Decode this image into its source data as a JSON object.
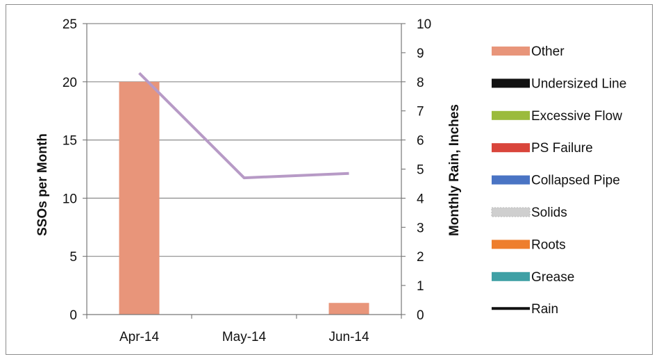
{
  "chart_data": {
    "type": "bar",
    "categories": [
      "Apr-14",
      "May-14",
      "Jun-14"
    ],
    "series": [
      {
        "name": "Other",
        "values": [
          20,
          0,
          1
        ],
        "color": "#e8957a",
        "axis": "left"
      },
      {
        "name": "Undersized Line",
        "values": [
          0,
          0,
          0
        ],
        "color": "#111111",
        "axis": "left"
      },
      {
        "name": "Excessive Flow",
        "values": [
          0,
          0,
          0
        ],
        "color": "#9bbb3c",
        "axis": "left"
      },
      {
        "name": "PS Failure",
        "values": [
          0,
          0,
          0
        ],
        "color": "#d9453b",
        "axis": "left"
      },
      {
        "name": "Collapsed Pipe",
        "values": [
          0,
          0,
          0
        ],
        "color": "#4a74c4",
        "axis": "left"
      },
      {
        "name": "Solids",
        "values": [
          0,
          0,
          0
        ],
        "color": "#cfcfcf",
        "axis": "left"
      },
      {
        "name": "Roots",
        "values": [
          0,
          0,
          0
        ],
        "color": "#ee7e2d",
        "axis": "left"
      },
      {
        "name": "Grease",
        "values": [
          0,
          0,
          0
        ],
        "color": "#3fa0a5",
        "axis": "left"
      },
      {
        "name": "Rain",
        "type": "line",
        "values": [
          8.3,
          4.7,
          4.85
        ],
        "color": "#b79ac6",
        "axis": "right"
      }
    ],
    "ylabel": "SSOs per Month",
    "y2label": "Monthly Rain, Inches",
    "ylim": [
      0,
      25
    ],
    "y2lim": [
      0,
      10
    ],
    "yticks": [
      "0",
      "5",
      "10",
      "15",
      "20",
      "25"
    ],
    "y2ticks": [
      "0",
      "1",
      "2",
      "3",
      "4",
      "5",
      "6",
      "7",
      "8",
      "9",
      "10"
    ],
    "grid": true,
    "legend_position": "right"
  }
}
